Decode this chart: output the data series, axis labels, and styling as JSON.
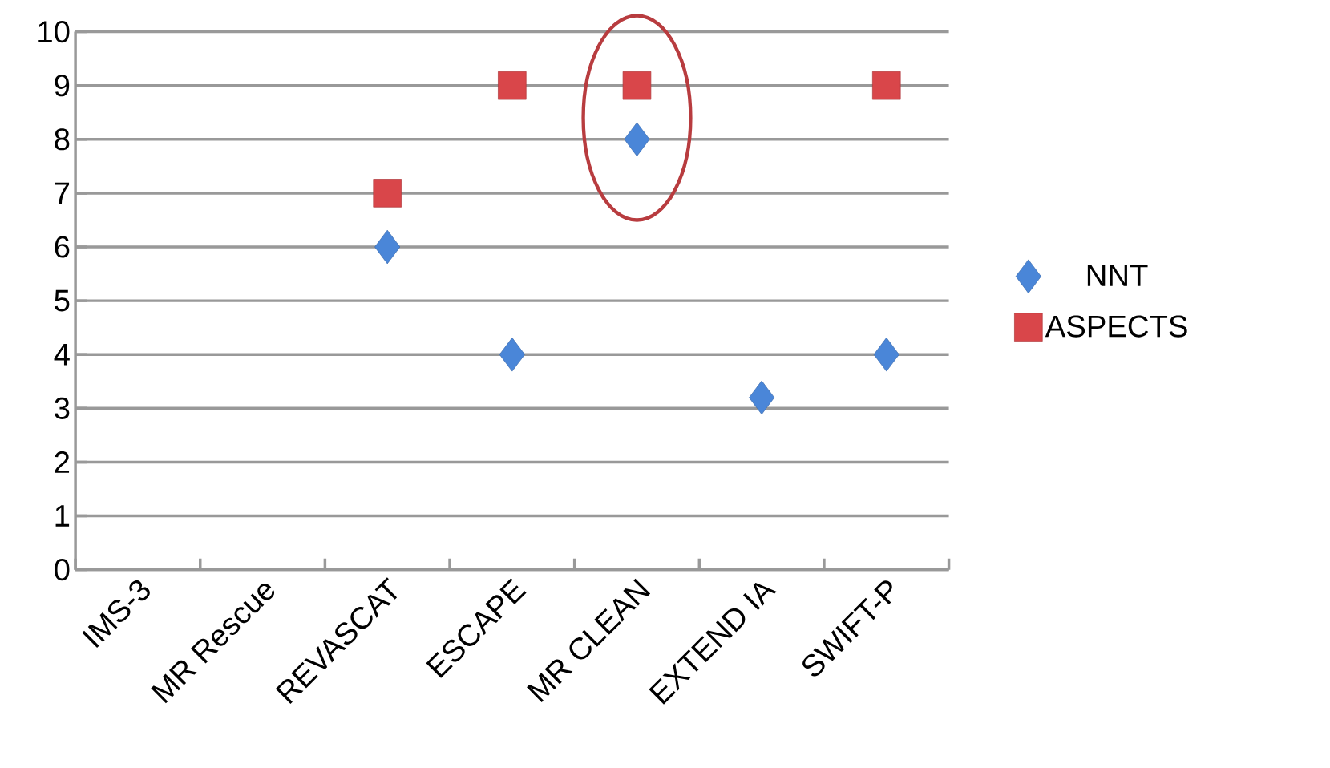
{
  "chart_data": {
    "type": "scatter",
    "categories": [
      "IMS-3",
      "MR Rescue",
      "REVASCAT",
      "ESCAPE",
      "MR CLEAN",
      "EXTEND IA",
      "SWIFT-P"
    ],
    "series": [
      {
        "name": "NNT",
        "color": "#4a86d8",
        "marker": "diamond",
        "values": [
          null,
          null,
          6,
          4,
          8,
          3.2,
          4
        ]
      },
      {
        "name": "ASPECTS",
        "color": "#d9464a",
        "marker": "square",
        "values": [
          null,
          null,
          7,
          9,
          9,
          null,
          9
        ]
      }
    ],
    "ylim": [
      0,
      10
    ],
    "yticks": [
      0,
      1,
      2,
      3,
      4,
      5,
      6,
      7,
      8,
      9,
      10
    ],
    "grid": "y",
    "legend": "right"
  }
}
